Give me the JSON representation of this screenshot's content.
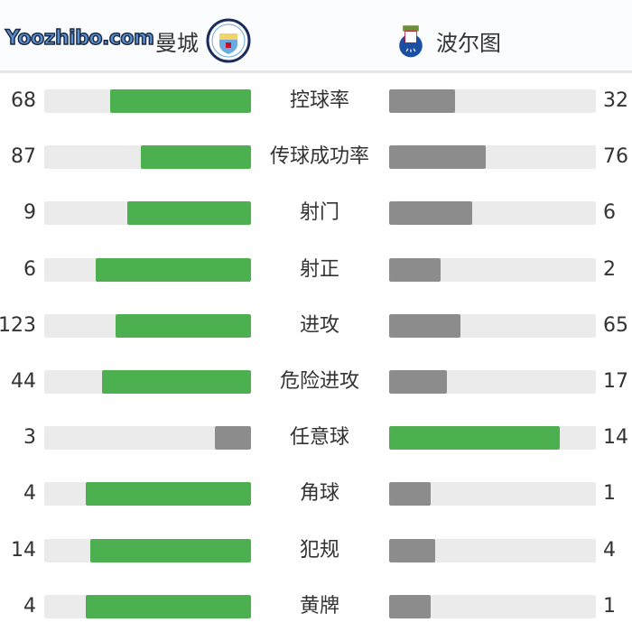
{
  "home": {
    "name": "曼城",
    "logo": "manchester-city-crest"
  },
  "away": {
    "name": "波尔图",
    "logo": "fc-porto-crest"
  },
  "colors": {
    "leader": "#4caf50",
    "trailer": "#8c8c8c",
    "track": "#ebebeb"
  },
  "stats": [
    {
      "label": "控球率",
      "home": 68,
      "away": 32
    },
    {
      "label": "传球成功率",
      "home": 87,
      "away": 76
    },
    {
      "label": "射门",
      "home": 9,
      "away": 6
    },
    {
      "label": "射正",
      "home": 6,
      "away": 2
    },
    {
      "label": "进攻",
      "home": 123,
      "away": 65
    },
    {
      "label": "危险进攻",
      "home": 44,
      "away": 17
    },
    {
      "label": "任意球",
      "home": 3,
      "away": 14
    },
    {
      "label": "角球",
      "home": 4,
      "away": 1
    },
    {
      "label": "犯规",
      "home": 14,
      "away": 4
    },
    {
      "label": "黄牌",
      "home": 4,
      "away": 1
    }
  ],
  "watermark": "Yoozhibo.com"
}
